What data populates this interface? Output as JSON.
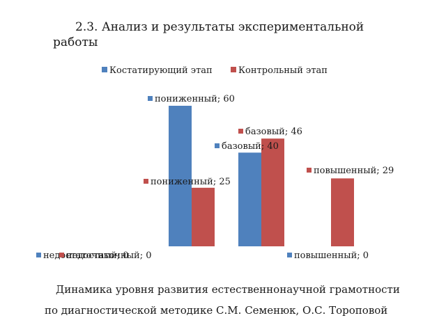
{
  "page": {
    "heading": "2.3. Анализ и результаты экспериментальной работы",
    "caption_line1": "Динамика уровня развития естественнонаучной грамотности",
    "caption_line2": "по диагностической методике С.М. Семенюк, О.С. Тороповой"
  },
  "chart_data": {
    "type": "bar",
    "title": "",
    "xlabel": "",
    "ylabel": "",
    "categories": [
      "недостаточный",
      "пониженный",
      "базовый",
      "повышенный"
    ],
    "ylim": [
      0,
      60
    ],
    "grid": false,
    "legend_position": "top",
    "series": [
      {
        "name": "Костатирующий этап",
        "color": "#4f81bd",
        "values": [
          0,
          60,
          40,
          0
        ],
        "data_labels": [
          "недостаточный; 0",
          "пониженный; 60",
          "базовый; 40",
          "повышенный; 0"
        ]
      },
      {
        "name": "Контрольный этап",
        "color": "#c0504d",
        "values": [
          0,
          25,
          46,
          29
        ],
        "data_labels": [
          "недостаточный; 0",
          "пониженный; 25",
          "базовый; 46",
          "повышенный; 29"
        ]
      }
    ]
  }
}
